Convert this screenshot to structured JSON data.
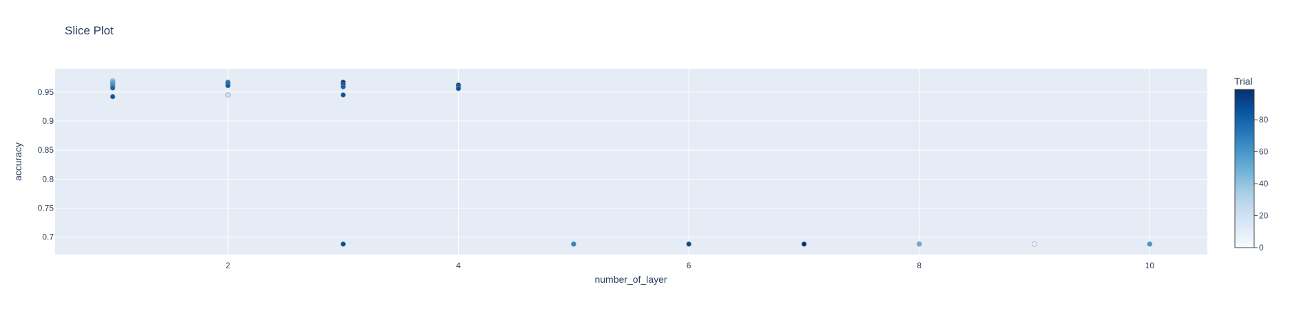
{
  "chart_data": {
    "type": "scatter",
    "title": "Slice Plot",
    "xlabel": "number_of_layer",
    "ylabel": "accuracy",
    "xlim": [
      0.5,
      10.5
    ],
    "ylim": [
      0.67,
      0.99
    ],
    "x_ticks": [
      2,
      4,
      6,
      8,
      10
    ],
    "x_tick_labels": [
      "2",
      "4",
      "6",
      "8",
      "10"
    ],
    "y_ticks": [
      0.7,
      0.75,
      0.8,
      0.85,
      0.9,
      0.95
    ],
    "y_tick_labels": [
      "0.7",
      "0.75",
      "0.8",
      "0.85",
      "0.9",
      "0.95"
    ],
    "grid": true,
    "plot_background": "#e5ecf6",
    "colorscale": [
      "#f7fbff",
      "#deebf7",
      "#c6dbef",
      "#9ecae1",
      "#6baed6",
      "#4292c6",
      "#2171b5",
      "#08519c",
      "#08306b"
    ],
    "colorbar": {
      "title": "Trial",
      "range": [
        0,
        99
      ],
      "ticks": [
        0,
        20,
        40,
        60,
        80
      ],
      "tick_labels": [
        "0",
        "20",
        "40",
        "60",
        "80"
      ]
    },
    "points": [
      {
        "x": 1,
        "y": 0.969,
        "trial": 40
      },
      {
        "x": 1,
        "y": 0.966,
        "trial": 55
      },
      {
        "x": 1,
        "y": 0.963,
        "trial": 62
      },
      {
        "x": 1,
        "y": 0.96,
        "trial": 70
      },
      {
        "x": 1,
        "y": 0.957,
        "trial": 78
      },
      {
        "x": 1,
        "y": 0.942,
        "trial": 85
      },
      {
        "x": 2,
        "y": 0.967,
        "trial": 75
      },
      {
        "x": 2,
        "y": 0.964,
        "trial": 88
      },
      {
        "x": 2,
        "y": 0.961,
        "trial": 82
      },
      {
        "x": 2,
        "y": 0.945,
        "trial": 22
      },
      {
        "x": 3,
        "y": 0.967,
        "trial": 95
      },
      {
        "x": 3,
        "y": 0.963,
        "trial": 90
      },
      {
        "x": 3,
        "y": 0.959,
        "trial": 80
      },
      {
        "x": 3,
        "y": 0.945,
        "trial": 85
      },
      {
        "x": 3,
        "y": 0.688,
        "trial": 88
      },
      {
        "x": 4,
        "y": 0.962,
        "trial": 98
      },
      {
        "x": 4,
        "y": 0.959,
        "trial": 92
      },
      {
        "x": 4,
        "y": 0.956,
        "trial": 86
      },
      {
        "x": 5,
        "y": 0.688,
        "trial": 68
      },
      {
        "x": 6,
        "y": 0.688,
        "trial": 90
      },
      {
        "x": 7,
        "y": 0.688,
        "trial": 99
      },
      {
        "x": 8,
        "y": 0.688,
        "trial": 50
      },
      {
        "x": 9,
        "y": 0.688,
        "trial": 8
      },
      {
        "x": 10,
        "y": 0.688,
        "trial": 60
      }
    ]
  }
}
